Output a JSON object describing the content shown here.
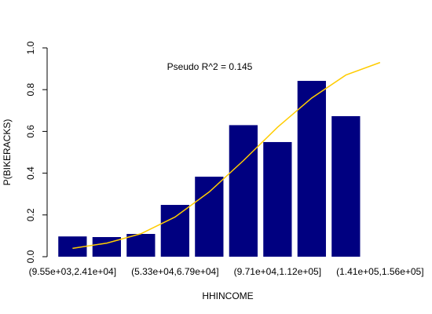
{
  "chart_data": {
    "type": "bar",
    "annotation": "Pseudo R^2 = 0.145",
    "xlabel": "HHINCOME",
    "ylabel": "P(BIKERACKS)",
    "categories": [
      "(9.55e+03,2.41e+04]",
      null,
      null,
      "(5.33e+04,6.79e+04]",
      null,
      null,
      "(9.71e+04,1.12e+05]",
      null,
      null,
      "(1.41e+05,1.56e+05]"
    ],
    "values": [
      0.097,
      0.094,
      0.109,
      0.248,
      0.383,
      0.63,
      0.549,
      0.842,
      0.673,
      null
    ],
    "color": "#000080",
    "line": {
      "color": "#ffcc00",
      "values": [
        0.04,
        0.065,
        0.11,
        0.19,
        0.31,
        0.46,
        0.62,
        0.76,
        0.87,
        0.93
      ]
    },
    "ylim": [
      0,
      1
    ],
    "yticks": [
      {
        "value": 0,
        "label": "0.0"
      },
      {
        "value": 0.2,
        "label": "0.2"
      },
      {
        "value": 0.4,
        "label": "0.4"
      },
      {
        "value": 0.6,
        "label": "0.6"
      },
      {
        "value": 0.8,
        "label": "0.8"
      },
      {
        "value": 1,
        "label": "1.0"
      }
    ]
  }
}
